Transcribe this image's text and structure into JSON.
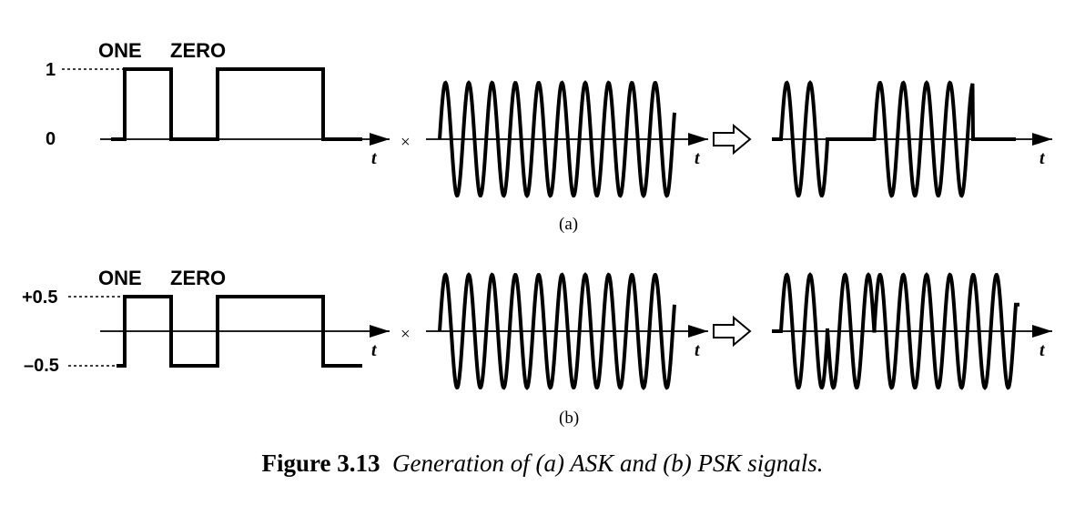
{
  "panel_a": {
    "bit_labels": [
      "ONE",
      "ZERO"
    ],
    "levels": [
      "1",
      "0"
    ],
    "time_label": "t",
    "multiply_symbol": "×",
    "sublabel": "(a)"
  },
  "panel_b": {
    "bit_labels": [
      "ONE",
      "ZERO"
    ],
    "levels": [
      "+0.5",
      "–0.5"
    ],
    "time_label": "t",
    "multiply_symbol": "×",
    "sublabel": "(b)"
  },
  "caption": {
    "number": "Figure 3.13",
    "text": "Generation of (a) ASK and (b) PSK signals."
  }
}
